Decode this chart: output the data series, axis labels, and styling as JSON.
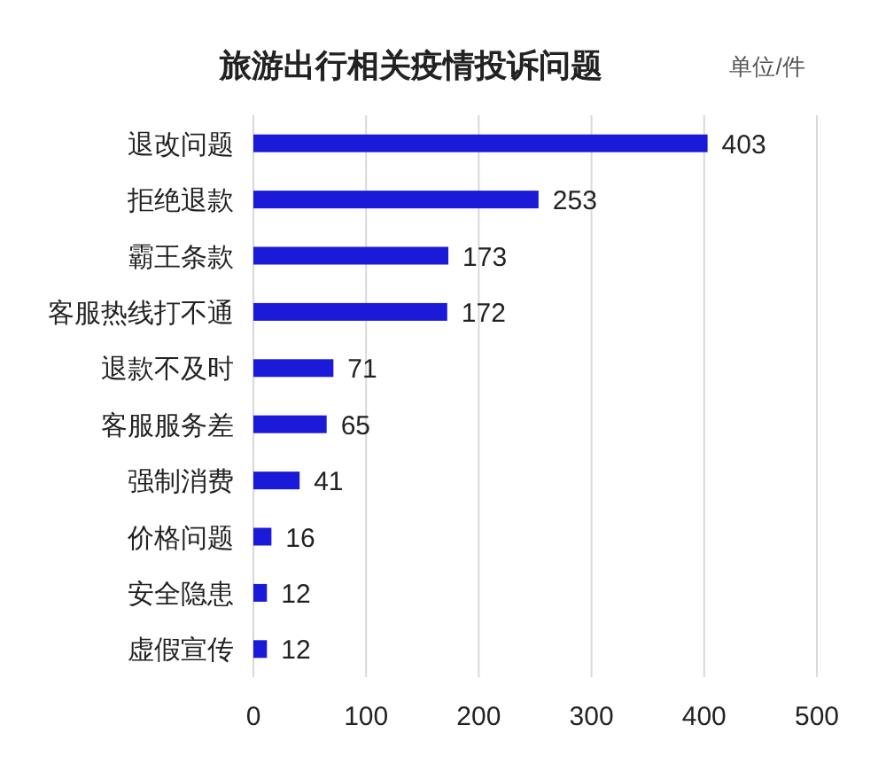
{
  "chart_data": {
    "type": "bar",
    "orientation": "horizontal",
    "title": "旅游出行相关疫情投诉问题",
    "annotations": [
      "单位/件"
    ],
    "categories": [
      "退改问题",
      "拒绝退款",
      "霸王条款",
      "客服热线打不通",
      "退款不及时",
      "客服服务差",
      "强制消费",
      "价格问题",
      "安全隐患",
      "虚假宣传"
    ],
    "values": [
      403,
      253,
      173,
      172,
      71,
      65,
      41,
      16,
      12,
      12
    ],
    "color": "#1a1ad8",
    "xlim": [
      0,
      500
    ],
    "xticks": [
      0,
      100,
      200,
      300,
      400,
      500
    ],
    "grid": "x",
    "data_labels": true
  }
}
